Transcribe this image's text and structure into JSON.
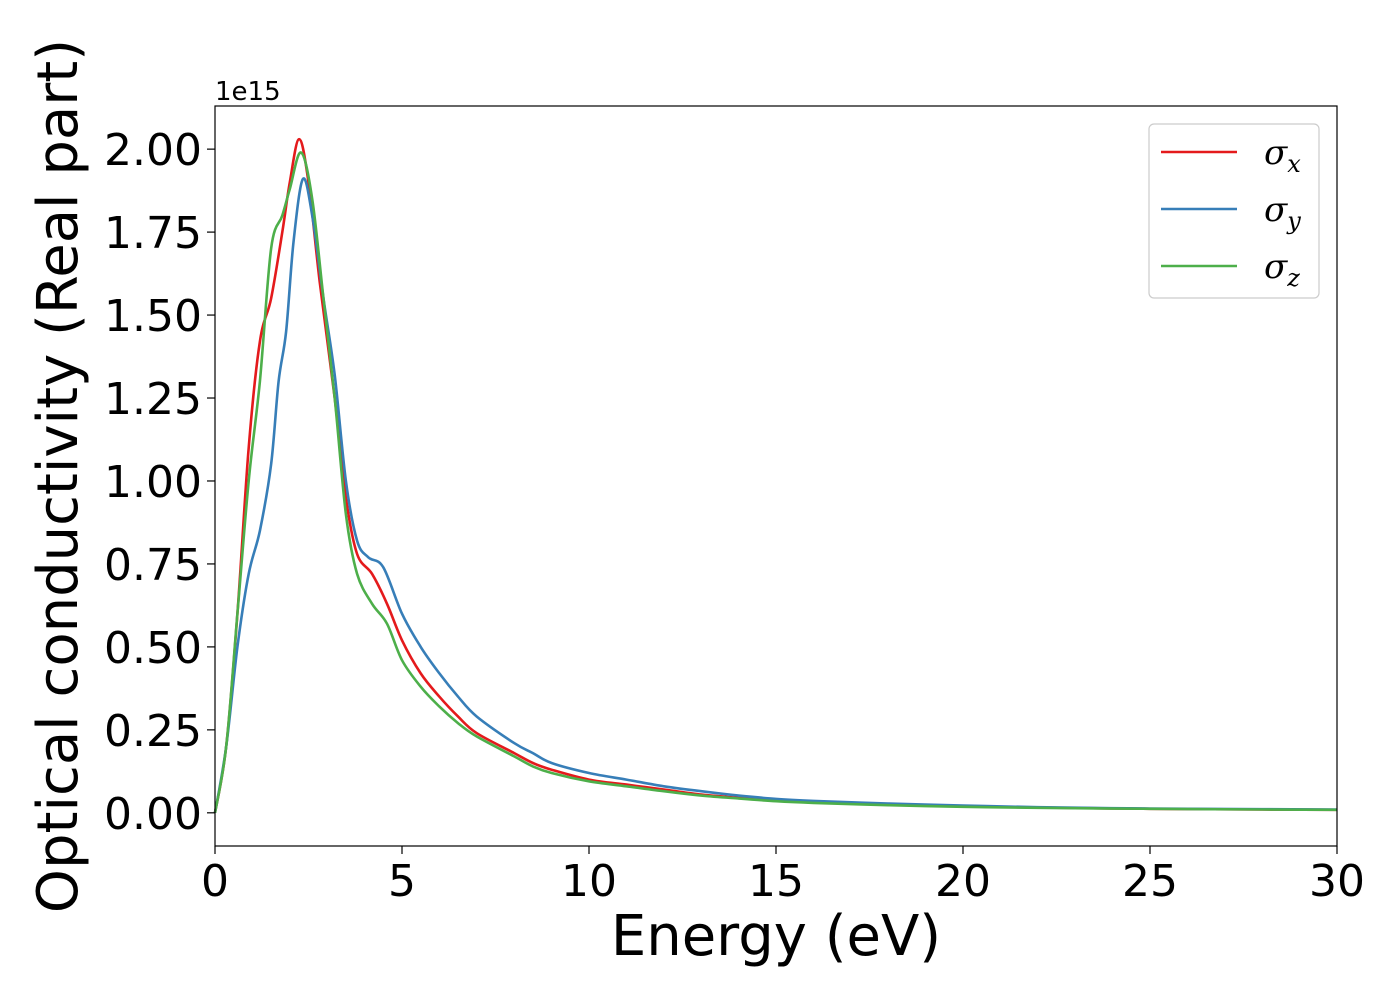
{
  "chart_data": {
    "type": "line",
    "xlabel": "Energy (eV)",
    "ylabel": "Optical conductivity (Real part)",
    "y_offset_label": "1e15",
    "xlim": [
      0,
      30
    ],
    "ylim": [
      -0.1,
      2.13
    ],
    "xticks": [
      0,
      5,
      10,
      15,
      20,
      25,
      30
    ],
    "xtick_labels": [
      "0",
      "5",
      "10",
      "15",
      "20",
      "25",
      "30"
    ],
    "yticks": [
      0,
      0.25,
      0.5,
      0.75,
      1.0,
      1.25,
      1.5,
      1.75,
      2.0
    ],
    "ytick_labels": [
      "0.00",
      "0.25",
      "0.50",
      "0.75",
      "1.00",
      "1.25",
      "1.50",
      "1.75",
      "2.00"
    ],
    "grid": false,
    "legend_position": "top-right",
    "series": [
      {
        "name": "σx",
        "symbol": "σ",
        "sub": "x",
        "color": "#e41a1c",
        "points": [
          [
            0,
            0
          ],
          [
            0.3,
            0.2
          ],
          [
            0.6,
            0.6
          ],
          [
            0.9,
            1.1
          ],
          [
            1.2,
            1.42
          ],
          [
            1.5,
            1.55
          ],
          [
            1.8,
            1.75
          ],
          [
            2.0,
            1.9
          ],
          [
            2.25,
            2.03
          ],
          [
            2.5,
            1.9
          ],
          [
            2.8,
            1.6
          ],
          [
            3.2,
            1.25
          ],
          [
            3.5,
            0.95
          ],
          [
            3.8,
            0.78
          ],
          [
            4.2,
            0.72
          ],
          [
            4.6,
            0.63
          ],
          [
            5.0,
            0.52
          ],
          [
            5.5,
            0.42
          ],
          [
            6.0,
            0.35
          ],
          [
            6.5,
            0.29
          ],
          [
            7.0,
            0.24
          ],
          [
            8.0,
            0.18
          ],
          [
            8.5,
            0.15
          ],
          [
            9.0,
            0.13
          ],
          [
            10,
            0.1
          ],
          [
            11,
            0.085
          ],
          [
            12,
            0.07
          ],
          [
            13,
            0.055
          ],
          [
            14,
            0.045
          ],
          [
            15,
            0.038
          ],
          [
            16,
            0.032
          ],
          [
            18,
            0.025
          ],
          [
            20,
            0.02
          ],
          [
            22,
            0.016
          ],
          [
            25,
            0.012
          ],
          [
            28,
            0.01
          ],
          [
            30,
            0.009
          ]
        ]
      },
      {
        "name": "σy",
        "symbol": "σ",
        "sub": "y",
        "color": "#377eb8",
        "points": [
          [
            0,
            0
          ],
          [
            0.3,
            0.2
          ],
          [
            0.6,
            0.5
          ],
          [
            0.9,
            0.72
          ],
          [
            1.2,
            0.85
          ],
          [
            1.5,
            1.05
          ],
          [
            1.7,
            1.3
          ],
          [
            1.9,
            1.45
          ],
          [
            2.1,
            1.72
          ],
          [
            2.35,
            1.91
          ],
          [
            2.6,
            1.8
          ],
          [
            2.9,
            1.55
          ],
          [
            3.2,
            1.32
          ],
          [
            3.5,
            1.0
          ],
          [
            3.8,
            0.82
          ],
          [
            4.1,
            0.77
          ],
          [
            4.5,
            0.74
          ],
          [
            5.0,
            0.6
          ],
          [
            5.5,
            0.5
          ],
          [
            6.0,
            0.42
          ],
          [
            6.5,
            0.35
          ],
          [
            7.0,
            0.29
          ],
          [
            8.0,
            0.21
          ],
          [
            8.5,
            0.18
          ],
          [
            9.0,
            0.15
          ],
          [
            10,
            0.12
          ],
          [
            11,
            0.1
          ],
          [
            12,
            0.08
          ],
          [
            13,
            0.065
          ],
          [
            14,
            0.052
          ],
          [
            15,
            0.042
          ],
          [
            16,
            0.036
          ],
          [
            18,
            0.028
          ],
          [
            20,
            0.022
          ],
          [
            22,
            0.017
          ],
          [
            25,
            0.013
          ],
          [
            28,
            0.011
          ],
          [
            30,
            0.01
          ]
        ]
      },
      {
        "name": "σz",
        "symbol": "σ",
        "sub": "z",
        "color": "#4daf4a",
        "points": [
          [
            0,
            0
          ],
          [
            0.3,
            0.2
          ],
          [
            0.6,
            0.6
          ],
          [
            0.9,
            1.0
          ],
          [
            1.2,
            1.3
          ],
          [
            1.5,
            1.7
          ],
          [
            1.8,
            1.8
          ],
          [
            2.0,
            1.88
          ],
          [
            2.3,
            1.99
          ],
          [
            2.6,
            1.85
          ],
          [
            2.9,
            1.55
          ],
          [
            3.2,
            1.25
          ],
          [
            3.5,
            0.9
          ],
          [
            3.8,
            0.72
          ],
          [
            4.2,
            0.63
          ],
          [
            4.6,
            0.57
          ],
          [
            5.0,
            0.46
          ],
          [
            5.5,
            0.38
          ],
          [
            6.0,
            0.32
          ],
          [
            6.5,
            0.27
          ],
          [
            7.0,
            0.23
          ],
          [
            8.0,
            0.17
          ],
          [
            8.5,
            0.14
          ],
          [
            9.0,
            0.12
          ],
          [
            10,
            0.095
          ],
          [
            11,
            0.08
          ],
          [
            12,
            0.065
          ],
          [
            13,
            0.052
          ],
          [
            14,
            0.043
          ],
          [
            15,
            0.035
          ],
          [
            16,
            0.03
          ],
          [
            18,
            0.023
          ],
          [
            20,
            0.018
          ],
          [
            22,
            0.015
          ],
          [
            25,
            0.012
          ],
          [
            28,
            0.01
          ],
          [
            30,
            0.009
          ]
        ]
      }
    ]
  }
}
